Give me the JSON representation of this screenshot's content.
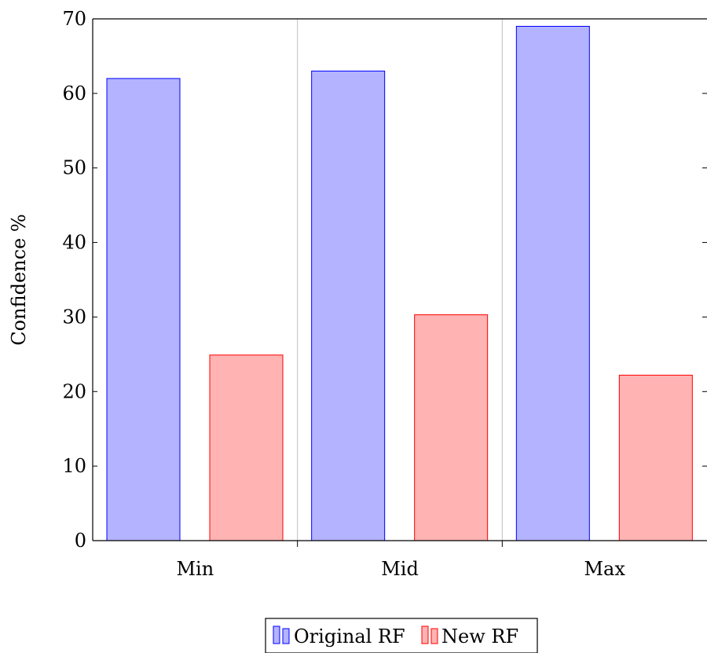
{
  "chart_data": {
    "type": "bar",
    "categories": [
      "Min",
      "Mid",
      "Max"
    ],
    "series": [
      {
        "name": "Original RF",
        "values": [
          62,
          63,
          69
        ],
        "fill": "#b3b3ff",
        "stroke": "#0000ff"
      },
      {
        "name": "New RF",
        "values": [
          24.9,
          30.3,
          22.2
        ],
        "fill": "#ffb3b3",
        "stroke": "#ff0000"
      }
    ],
    "title": "",
    "xlabel": "",
    "ylabel": "Confidence %",
    "ylim": [
      0,
      70
    ],
    "yticks": [
      0,
      10,
      20,
      30,
      40,
      50,
      60,
      70
    ],
    "grid": "vertical-separators",
    "legend_position": "bottom-center"
  }
}
